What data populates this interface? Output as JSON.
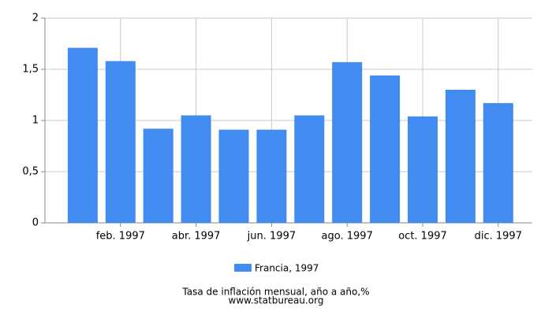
{
  "chart_data": {
    "type": "bar",
    "categories": [
      null,
      "feb. 1997",
      null,
      "abr. 1997",
      null,
      "jun. 1997",
      null,
      "ago. 1997",
      null,
      "oct. 1997",
      null,
      "dic. 1997"
    ],
    "series": [
      {
        "name": "Francia, 1997",
        "color": "#428bf0",
        "values": [
          1.71,
          1.58,
          0.92,
          1.05,
          0.91,
          0.91,
          1.05,
          1.57,
          1.44,
          1.04,
          1.3,
          1.17
        ]
      }
    ],
    "ylim": [
      0,
      2
    ],
    "yticks": [
      0,
      {
        "value": 0.5,
        "label": "0,5"
      },
      1,
      {
        "value": 1.5,
        "label": "1,5"
      },
      2
    ],
    "grid": true,
    "legend": "bottom",
    "xlabel": "Tasa de inflación mensual, año a año,%",
    "source": "www.statbureau.org"
  }
}
